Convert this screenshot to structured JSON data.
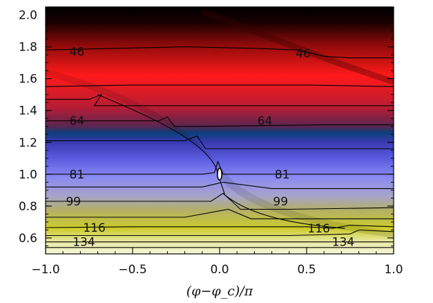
{
  "chart_data": {
    "type": "heatmap",
    "title": "",
    "xlabel": "(φ−φ_c)/π",
    "ylabel": "",
    "xlim": [
      -1.0,
      1.0
    ],
    "ylim": [
      0.5,
      2.05
    ],
    "x_ticks": [
      -1.0,
      -0.5,
      0.0,
      0.5,
      1.0
    ],
    "x_tick_labels": [
      "−1.0",
      "−0.5",
      "0.0",
      "0.5",
      "1.0"
    ],
    "y_ticks": [
      0.6,
      0.8,
      1.0,
      1.2,
      1.4,
      1.6,
      1.8,
      2.0
    ],
    "y_tick_labels": [
      "0.6",
      "0.8",
      "1.0",
      "1.2",
      "1.4",
      "1.6",
      "1.8",
      "2.0"
    ],
    "color_bands": [
      {
        "y": 2.05,
        "color": "#000000"
      },
      {
        "y": 1.95,
        "color": "#1a0000"
      },
      {
        "y": 1.82,
        "color": "#8a0a0a"
      },
      {
        "y": 1.62,
        "color": "#ff1a1a"
      },
      {
        "y": 1.42,
        "color": "#b81c34"
      },
      {
        "y": 1.3,
        "color": "#5a2650"
      },
      {
        "y": 1.26,
        "color": "#0b3f7a"
      },
      {
        "y": 1.2,
        "color": "#3a3ab0"
      },
      {
        "y": 1.1,
        "color": "#5a5ae0"
      },
      {
        "y": 0.98,
        "color": "#8a8af2"
      },
      {
        "y": 0.86,
        "color": "#a8a4c8"
      },
      {
        "y": 0.78,
        "color": "#b2ae6a"
      },
      {
        "y": 0.66,
        "color": "#cccc2a"
      },
      {
        "y": 0.58,
        "color": "#e6e6a0"
      },
      {
        "y": 0.5,
        "color": "#f6f6d8"
      }
    ],
    "contours": [
      {
        "label": "46",
        "label_positions": [
          {
            "x": -0.82,
            "y": 1.77
          },
          {
            "x": 0.48,
            "y": 1.76
          }
        ]
      },
      {
        "label": "64",
        "label_positions": [
          {
            "x": -0.82,
            "y": 1.335
          },
          {
            "x": 0.26,
            "y": 1.335
          }
        ]
      },
      {
        "label": "81",
        "label_positions": [
          {
            "x": -0.82,
            "y": 1.0
          },
          {
            "x": 0.36,
            "y": 1.0
          }
        ]
      },
      {
        "label": "99",
        "label_positions": [
          {
            "x": -0.84,
            "y": 0.83
          },
          {
            "x": 0.35,
            "y": 0.83
          }
        ]
      },
      {
        "label": "116",
        "label_positions": [
          {
            "x": -0.72,
            "y": 0.665
          },
          {
            "x": 0.57,
            "y": 0.66
          }
        ]
      },
      {
        "label": "134",
        "label_positions": [
          {
            "x": -0.78,
            "y": 0.575
          },
          {
            "x": 0.71,
            "y": 0.575
          }
        ]
      }
    ]
  }
}
